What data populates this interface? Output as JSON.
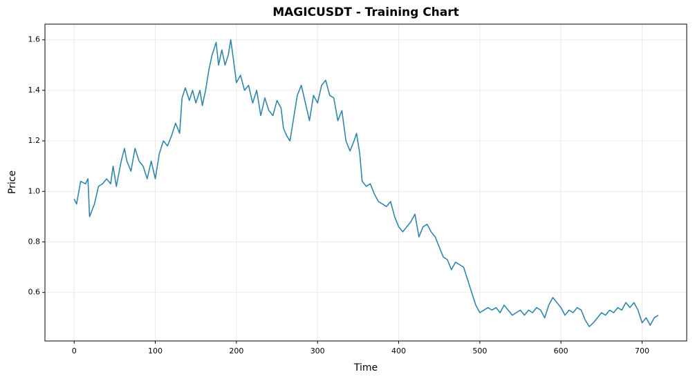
{
  "chart_data": {
    "type": "line",
    "title": "MAGICUSDT - Training Chart",
    "x_label": "Time",
    "y_label": "Price",
    "grid": true,
    "xlim": [
      -36,
      755
    ],
    "ylim": [
      0.408,
      1.662
    ],
    "xticks": [
      0,
      100,
      200,
      300,
      400,
      500,
      600,
      700
    ],
    "yticks": [
      0.6,
      0.8,
      {
        "value": 1,
        "label": "1.0"
      },
      1.2,
      1.4,
      1.6
    ],
    "x": [
      0,
      3,
      8,
      14,
      17,
      19,
      25,
      30,
      35,
      40,
      45,
      48,
      52,
      58,
      62,
      65,
      70,
      75,
      80,
      85,
      90,
      95,
      100,
      105,
      110,
      115,
      120,
      125,
      130,
      133,
      137,
      142,
      146,
      150,
      155,
      158,
      162,
      166,
      170,
      175,
      178,
      182,
      186,
      190,
      193,
      196,
      200,
      205,
      210,
      215,
      220,
      225,
      230,
      235,
      240,
      245,
      250,
      255,
      258,
      262,
      266,
      270,
      275,
      280,
      285,
      290,
      295,
      300,
      305,
      310,
      315,
      320,
      325,
      330,
      335,
      340,
      345,
      348,
      352,
      355,
      360,
      365,
      370,
      375,
      380,
      385,
      390,
      395,
      400,
      405,
      410,
      415,
      420,
      425,
      430,
      435,
      440,
      445,
      450,
      455,
      460,
      465,
      470,
      475,
      480,
      485,
      490,
      495,
      500,
      505,
      510,
      515,
      520,
      525,
      530,
      535,
      540,
      545,
      550,
      555,
      560,
      565,
      570,
      575,
      580,
      585,
      590,
      595,
      600,
      605,
      610,
      615,
      620,
      625,
      630,
      635,
      640,
      645,
      650,
      655,
      660,
      665,
      670,
      675,
      680,
      685,
      690,
      695,
      700,
      705,
      710,
      715,
      720
    ],
    "series": [
      {
        "color": "#2e86ab",
        "values": [
          0.97,
          0.95,
          1.04,
          1.03,
          1.05,
          0.9,
          0.95,
          1.02,
          1.03,
          1.05,
          1.03,
          1.1,
          1.02,
          1.12,
          1.17,
          1.12,
          1.08,
          1.17,
          1.12,
          1.1,
          1.05,
          1.12,
          1.05,
          1.15,
          1.2,
          1.18,
          1.22,
          1.27,
          1.23,
          1.37,
          1.41,
          1.36,
          1.4,
          1.35,
          1.4,
          1.34,
          1.4,
          1.48,
          1.54,
          1.59,
          1.5,
          1.56,
          1.5,
          1.54,
          1.6,
          1.53,
          1.43,
          1.46,
          1.4,
          1.42,
          1.35,
          1.4,
          1.3,
          1.37,
          1.32,
          1.3,
          1.36,
          1.33,
          1.25,
          1.22,
          1.2,
          1.28,
          1.38,
          1.42,
          1.35,
          1.28,
          1.38,
          1.35,
          1.42,
          1.44,
          1.38,
          1.37,
          1.28,
          1.32,
          1.2,
          1.16,
          1.2,
          1.23,
          1.15,
          1.04,
          1.02,
          1.03,
          0.99,
          0.96,
          0.95,
          0.94,
          0.96,
          0.9,
          0.86,
          0.84,
          0.86,
          0.88,
          0.91,
          0.82,
          0.86,
          0.87,
          0.84,
          0.82,
          0.78,
          0.74,
          0.73,
          0.69,
          0.72,
          0.71,
          0.7,
          0.65,
          0.6,
          0.55,
          0.52,
          0.53,
          0.54,
          0.53,
          0.54,
          0.52,
          0.55,
          0.53,
          0.51,
          0.52,
          0.53,
          0.51,
          0.53,
          0.52,
          0.54,
          0.53,
          0.5,
          0.55,
          0.58,
          0.56,
          0.54,
          0.51,
          0.53,
          0.52,
          0.54,
          0.53,
          0.49,
          0.465,
          0.48,
          0.5,
          0.52,
          0.51,
          0.53,
          0.52,
          0.54,
          0.53,
          0.56,
          0.54,
          0.56,
          0.53,
          0.48,
          0.5,
          0.47,
          0.5,
          0.51
        ]
      }
    ]
  }
}
